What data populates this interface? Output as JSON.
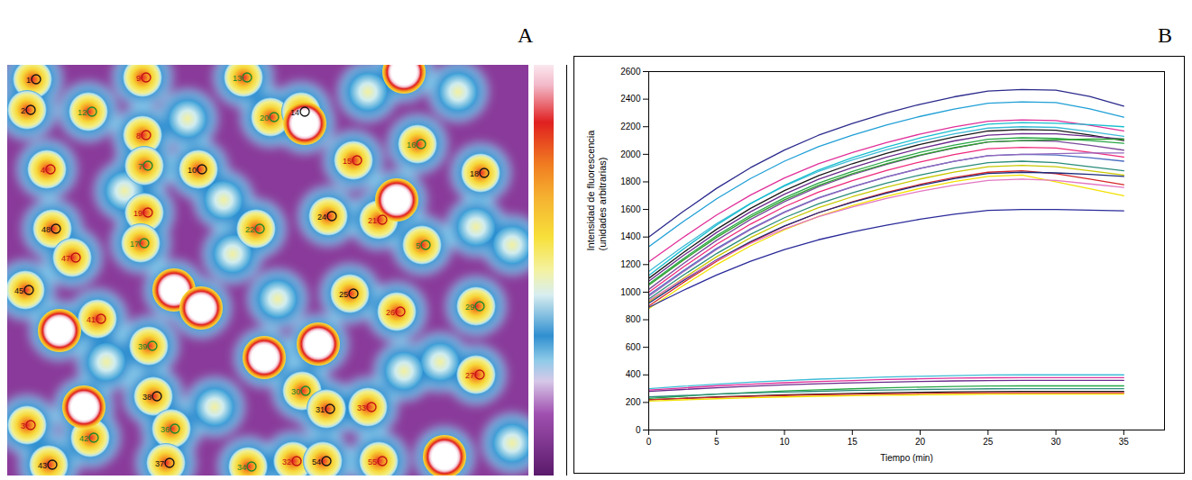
{
  "image": {
    "panel": "A",
    "cell_labels": [
      "1",
      "9",
      "13",
      "2",
      "8",
      "20",
      "14",
      "4",
      "7",
      "10",
      "15",
      "16",
      "18",
      "19",
      "22",
      "24",
      "21",
      "5",
      "48",
      "47",
      "17",
      "45",
      "41",
      "39",
      "25",
      "26",
      "29",
      "38",
      "27",
      "30",
      "31",
      "33",
      "36",
      "37",
      "32",
      "34",
      "54",
      "55",
      "42",
      "43",
      "3",
      "12"
    ]
  },
  "chart_data": {
    "panel": "B",
    "type": "line",
    "xlabel": "Tiempo (min)",
    "ylabel": "Intensidad de fluorescencia (unidades arbitrarias)",
    "x": [
      0,
      2.5,
      5,
      7.5,
      10,
      12.5,
      15,
      17.5,
      20,
      22.5,
      25,
      27.5,
      30,
      32.5,
      35
    ],
    "xlim": [
      0,
      38
    ],
    "xticks": [
      0,
      5,
      10,
      15,
      20,
      25,
      30,
      35
    ],
    "ylim": [
      0,
      2600
    ],
    "yticks": [
      0,
      200,
      400,
      600,
      800,
      1000,
      1200,
      1400,
      1600,
      1800,
      2000,
      2200,
      2400,
      2600
    ],
    "grid": false,
    "series": [
      {
        "color": "#2b2a8c",
        "values": [
          1400,
          1582,
          1753,
          1903,
          2031,
          2138,
          2224,
          2299,
          2363,
          2417,
          2459,
          2470,
          2465,
          2420,
          2350
        ]
      },
      {
        "color": "#1f9fd6",
        "values": [
          1330,
          1509,
          1677,
          1824,
          1950,
          2055,
          2139,
          2212,
          2275,
          2328,
          2370,
          2380,
          2375,
          2330,
          2270
        ]
      },
      {
        "color": "#e0309a",
        "values": [
          1220,
          1395,
          1560,
          1704,
          1828,
          1931,
          2013,
          2085,
          2147,
          2199,
          2240,
          2250,
          2245,
          2210,
          2170
        ]
      },
      {
        "color": "#3dbbd6",
        "values": [
          1150,
          1329,
          1497,
          1644,
          1770,
          1875,
          1959,
          2032,
          2095,
          2148,
          2190,
          2200,
          2195,
          2165,
          2130
        ]
      },
      {
        "color": "#1a1a1a",
        "values": [
          1100,
          1284,
          1456,
          1608,
          1737,
          1845,
          1932,
          2007,
          2072,
          2126,
          2169,
          2180,
          2175,
          2140,
          2100
        ]
      },
      {
        "color": "#6a2a8c",
        "values": [
          1080,
          1262,
          1433,
          1583,
          1711,
          1818,
          1904,
          1979,
          2043,
          2097,
          2139,
          2150,
          2148,
          2130,
          2110
        ]
      },
      {
        "color": "#28a745",
        "values": [
          1060,
          1240,
          1410,
          1558,
          1685,
          1791,
          1876,
          1950,
          2014,
          2067,
          2109,
          2120,
          2115,
          2100,
          2080
        ]
      },
      {
        "color": "#ee2a7b",
        "values": [
          1000,
          1179,
          1347,
          1494,
          1620,
          1725,
          1809,
          1882,
          1945,
          1998,
          2040,
          2050,
          2045,
          2015,
          1980
        ]
      },
      {
        "color": "#4b6cc1",
        "values": [
          980,
          1153,
          1317,
          1459,
          1582,
          1684,
          1765,
          1837,
          1898,
          1949,
          1990,
          2000,
          1995,
          1975,
          1950
        ]
      },
      {
        "color": "#2a8c7a",
        "values": [
          950,
          1120,
          1280,
          1420,
          1540,
          1640,
          1720,
          1790,
          1850,
          1900,
          1940,
          1950,
          1940,
          1910,
          1880
        ]
      },
      {
        "color": "#c8c800",
        "values": [
          930,
          1098,
          1257,
          1395,
          1514,
          1613,
          1692,
          1762,
          1821,
          1871,
          1910,
          1920,
          1910,
          1880,
          1850
        ]
      },
      {
        "color": "#d62728",
        "values": [
          900,
          1067,
          1223,
          1361,
          1478,
          1576,
          1655,
          1723,
          1782,
          1831,
          1870,
          1880,
          1860,
          1820,
          1780
        ]
      },
      {
        "color": "#1b2a7a",
        "values": [
          920,
          1082,
          1234,
          1367,
          1481,
          1576,
          1652,
          1718,
          1775,
          1823,
          1861,
          1870,
          1865,
          1855,
          1840
        ]
      },
      {
        "color": "#f2e000",
        "values": [
          880,
          1045,
          1200,
          1336,
          1452,
          1549,
          1627,
          1695,
          1753,
          1802,
          1840,
          1850,
          1800,
          1750,
          1700
        ]
      },
      {
        "color": "#7a4a9a",
        "values": [
          1020,
          1204,
          1376,
          1528,
          1657,
          1765,
          1852,
          1927,
          1992,
          2046,
          2089,
          2100,
          2095,
          2065,
          2030
        ]
      },
      {
        "color": "#e377c2",
        "values": [
          940,
          1090,
          1230,
          1354,
          1459,
          1547,
          1618,
          1679,
          1732,
          1776,
          1811,
          1820,
          1810,
          1785,
          1760
        ]
      },
      {
        "color": "#2a2a9a",
        "values": [
          890,
          1011,
          1124,
          1224,
          1309,
          1380,
          1437,
          1486,
          1529,
          1565,
          1593,
          1600,
          1600,
          1595,
          1590
        ]
      },
      {
        "color": "#17becf",
        "values": [
          1120,
          1309,
          1486,
          1642,
          1775,
          1886,
          1975,
          2052,
          2119,
          2175,
          2219,
          2230,
          2225,
          2215,
          2200
        ]
      },
      {
        "color": "#9467bd",
        "values": [
          970,
          1145,
          1310,
          1454,
          1578,
          1681,
          1763,
          1835,
          1897,
          1949,
          1990,
          2000,
          2005,
          2010,
          2010
        ]
      },
      {
        "color": "#2ca02c",
        "values": [
          1050,
          1229,
          1397,
          1544,
          1670,
          1775,
          1859,
          1932,
          1995,
          2048,
          2090,
          2100,
          2105,
          2110,
          2110
        ]
      },
      {
        "color": "#3dbbd6",
        "values": [
          300,
          317,
          333,
          347,
          359,
          369,
          377,
          384,
          390,
          395,
          399,
          400,
          400,
          400,
          400
        ]
      },
      {
        "color": "#e0309a",
        "values": [
          290,
          305,
          320,
          332,
          343,
          352,
          359,
          366,
          371,
          376,
          379,
          380,
          380,
          380,
          380
        ]
      },
      {
        "color": "#6a2a8c",
        "values": [
          280,
          294,
          306,
          318,
          327,
          335,
          342,
          347,
          352,
          356,
          359,
          360,
          360,
          360,
          360
        ]
      },
      {
        "color": "#28a745",
        "values": [
          230,
          245,
          260,
          272,
          283,
          292,
          299,
          306,
          311,
          316,
          319,
          320,
          320,
          320,
          320
        ]
      },
      {
        "color": "#1a1a1a",
        "values": [
          220,
          230,
          240,
          248,
          255,
          261,
          266,
          270,
          274,
          277,
          279,
          280,
          280,
          280,
          280
        ]
      },
      {
        "color": "#d62728",
        "values": [
          220,
          229,
          237,
          244,
          250,
          255,
          259,
          262,
          265,
          268,
          270,
          270,
          270,
          270,
          270
        ]
      },
      {
        "color": "#f2e000",
        "values": [
          210,
          219,
          227,
          234,
          240,
          245,
          249,
          252,
          255,
          258,
          260,
          260,
          260,
          260,
          260
        ]
      },
      {
        "color": "#2a8c7a",
        "values": [
          240,
          250,
          260,
          268,
          275,
          281,
          286,
          290,
          294,
          297,
          299,
          300,
          300,
          300,
          300
        ]
      }
    ]
  }
}
